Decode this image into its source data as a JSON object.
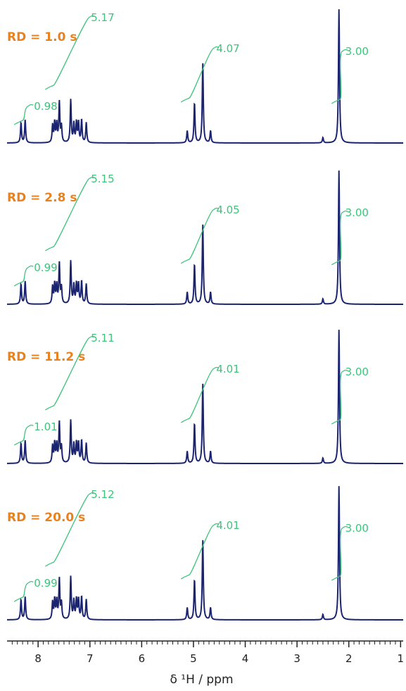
{
  "colors": {
    "spectrum": "#1b2470",
    "integral": "#3cc47a",
    "label": "#e8821e",
    "axis": "#222222"
  },
  "chart_data": {
    "type": "line",
    "xlabel": "δ ¹H / ppm",
    "xlim": [
      8.6,
      0.95
    ],
    "x_ticks": [
      "8",
      "7",
      "6",
      "5",
      "4",
      "3",
      "2",
      "1"
    ],
    "reversed_x_axis": true,
    "grid": false,
    "panels": [
      {
        "label": "RD = 1.0 s",
        "integrals": [
          "0.98",
          "5.17",
          "4.07",
          "3.00"
        ]
      },
      {
        "label": "RD = 2.8 s",
        "integrals": [
          "0.99",
          "5.15",
          "4.05",
          "3.00"
        ]
      },
      {
        "label": "RD = 11.2 s",
        "integrals": [
          "1.01",
          "5.11",
          "4.01",
          "3.00"
        ]
      },
      {
        "label": "RD = 20.0 s",
        "integrals": [
          "0.99",
          "5.12",
          "4.01",
          "3.00"
        ]
      }
    ],
    "peaks": [
      {
        "ppm": 8.33,
        "height": 0.15
      },
      {
        "ppm": 8.25,
        "height": 0.17
      },
      {
        "ppm": 7.72,
        "height": 0.13
      },
      {
        "ppm": 7.68,
        "height": 0.15
      },
      {
        "ppm": 7.64,
        "height": 0.14
      },
      {
        "ppm": 7.59,
        "height": 0.3
      },
      {
        "ppm": 7.55,
        "height": 0.12
      },
      {
        "ppm": 7.37,
        "height": 0.32
      },
      {
        "ppm": 7.31,
        "height": 0.14
      },
      {
        "ppm": 7.26,
        "height": 0.15
      },
      {
        "ppm": 7.22,
        "height": 0.15
      },
      {
        "ppm": 7.16,
        "height": 0.17
      },
      {
        "ppm": 7.07,
        "height": 0.15
      },
      {
        "ppm": 5.12,
        "height": 0.09
      },
      {
        "ppm": 4.98,
        "height": 0.3
      },
      {
        "ppm": 4.82,
        "height": 0.6
      },
      {
        "ppm": 4.67,
        "height": 0.09
      },
      {
        "ppm": 2.5,
        "height": 0.04
      },
      {
        "ppm": 2.19,
        "height": 1.0
      }
    ]
  }
}
